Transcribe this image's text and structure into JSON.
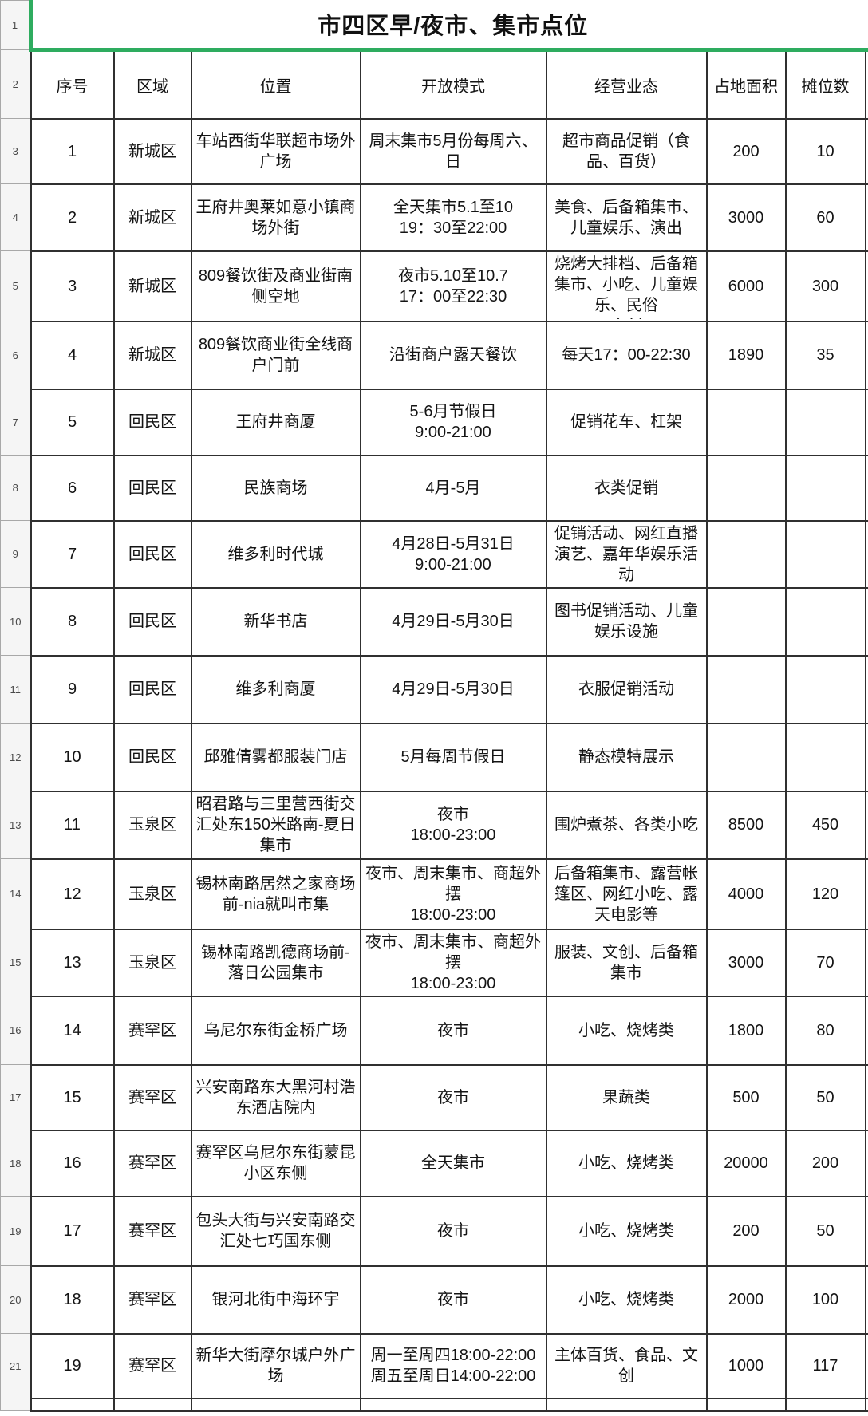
{
  "sheet": {
    "title": "市四区早/夜市、集市点位",
    "columns": [
      "序号",
      "区域",
      "位置",
      "开放模式",
      "经营业态",
      "占地面积",
      "摊位数"
    ],
    "gutter_rows": [
      "1",
      "2",
      "3",
      "4",
      "5",
      "6",
      "7",
      "8",
      "9",
      "10",
      "11",
      "12",
      "13",
      "14",
      "15",
      "16",
      "17",
      "18",
      "19",
      "20",
      "21"
    ],
    "rows": [
      {
        "seq": "1",
        "district": "新城区",
        "location": "车站西街华联超市场外广场",
        "schedule": "周末集市5月份每周六、日",
        "business": "超市商品促销（食品、百货）",
        "area": "200",
        "stalls": "10"
      },
      {
        "seq": "2",
        "district": "新城区",
        "location": "王府井奥莱如意小镇商场外街",
        "schedule": "全天集市5.1至10\n19：30至22:00",
        "business": "美食、后备箱集市、儿童娱乐、演出",
        "area": "3000",
        "stalls": "60"
      },
      {
        "seq": "3",
        "district": "新城区",
        "location": "809餐饮街及商业街南侧空地",
        "schedule": "夜市5.10至10.7\n17：00至22:30",
        "business": "烧烤大排档、后备箱集市、小吃、儿童娱乐、民俗\n文创",
        "area": "6000",
        "stalls": "300"
      },
      {
        "seq": "4",
        "district": "新城区",
        "location": "809餐饮商业街全线商户门前",
        "schedule": "沿街商户露天餐饮",
        "business": "每天17：00-22:30",
        "area": "1890",
        "stalls": "35"
      },
      {
        "seq": "5",
        "district": "回民区",
        "location": "王府井商厦",
        "schedule": "5-6月节假日\n9:00-21:00",
        "business": "促销花车、杠架",
        "area": "",
        "stalls": ""
      },
      {
        "seq": "6",
        "district": "回民区",
        "location": "民族商场",
        "schedule": "4月-5月",
        "business": "衣类促销",
        "area": "",
        "stalls": ""
      },
      {
        "seq": "7",
        "district": "回民区",
        "location": "维多利时代城",
        "schedule": "4月28日-5月31日\n9:00-21:00",
        "business": "促销活动、网红直播演艺、嘉年华娱乐活动",
        "area": "",
        "stalls": ""
      },
      {
        "seq": "8",
        "district": "回民区",
        "location": "新华书店",
        "schedule": "4月29日-5月30日",
        "business": "图书促销活动、儿童娱乐设施",
        "area": "",
        "stalls": ""
      },
      {
        "seq": "9",
        "district": "回民区",
        "location": "维多利商厦",
        "schedule": "4月29日-5月30日",
        "business": "衣服促销活动",
        "area": "",
        "stalls": ""
      },
      {
        "seq": "10",
        "district": "回民区",
        "location": "邱雅倩雾都服装门店",
        "schedule": "5月每周节假日",
        "business": "静态模特展示",
        "area": "",
        "stalls": ""
      },
      {
        "seq": "11",
        "district": "玉泉区",
        "location": "昭君路与三里营西街交汇处东150米路南-夏日集市",
        "schedule": "夜市\n18:00-23:00",
        "business": "围炉煮茶、各类小吃",
        "area": "8500",
        "stalls": "450"
      },
      {
        "seq": "12",
        "district": "玉泉区",
        "location": "锡林南路居然之家商场前-nia就叫市集",
        "schedule": "夜市、周末集市、商超外摆\n18:00-23:00",
        "business": "后备箱集市、露营帐篷区、网红小吃、露天电影等",
        "area": "4000",
        "stalls": "120"
      },
      {
        "seq": "13",
        "district": "玉泉区",
        "location": "锡林南路凯德商场前-落日公园集市",
        "schedule": "夜市、周末集市、商超外摆\n18:00-23:00",
        "business": "服装、文创、后备箱集市",
        "area": "3000",
        "stalls": "70"
      },
      {
        "seq": "14",
        "district": "赛罕区",
        "location": "乌尼尔东街金桥广场",
        "schedule": "夜市",
        "business": "小吃、烧烤类",
        "area": "1800",
        "stalls": "80"
      },
      {
        "seq": "15",
        "district": "赛罕区",
        "location": "兴安南路东大黑河村浩东酒店院内",
        "schedule": "夜市",
        "business": "果蔬类",
        "area": "500",
        "stalls": "50"
      },
      {
        "seq": "16",
        "district": "赛罕区",
        "location": "赛罕区乌尼尔东街蒙昆小区东侧",
        "schedule": "全天集市",
        "business": "小吃、烧烤类",
        "area": "20000",
        "stalls": "200"
      },
      {
        "seq": "17",
        "district": "赛罕区",
        "location": "包头大街与兴安南路交汇处七巧国东侧",
        "schedule": "夜市",
        "business": "小吃、烧烤类",
        "area": "200",
        "stalls": "50"
      },
      {
        "seq": "18",
        "district": "赛罕区",
        "location": "银河北街中海环宇",
        "schedule": "夜市",
        "business": "小吃、烧烤类",
        "area": "2000",
        "stalls": "100"
      },
      {
        "seq": "19",
        "district": "赛罕区",
        "location": "新华大街摩尔城户外广场",
        "schedule": "周一至周四18:00-22:00\n周五至周日14:00-22:00",
        "business": "主体百货、食品、文创",
        "area": "1000",
        "stalls": "117"
      }
    ],
    "colors": {
      "selection_green": "#2EAC5F",
      "grid_border": "#303030",
      "gutter_background": "#F5F5F5"
    }
  }
}
